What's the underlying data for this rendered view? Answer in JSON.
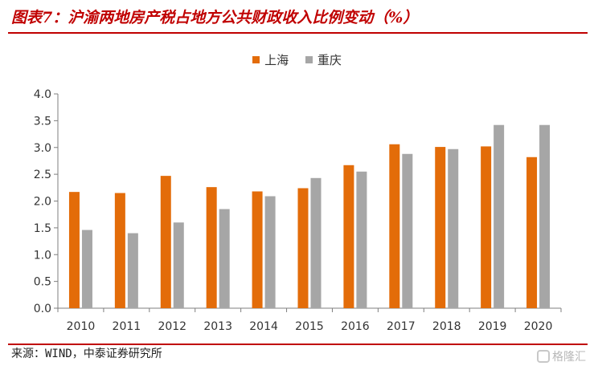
{
  "header": {
    "title": "图表7：沪渝两地房产税占地方公共财政收入比例变动（%）"
  },
  "footer": {
    "source": "来源：WIND，中泰证券研究所",
    "watermark": "格隆汇"
  },
  "colors": {
    "shanghai": "#e36c09",
    "chongqing": "#a6a6a6",
    "rule": "#c00000"
  },
  "chart_data": {
    "type": "bar",
    "title": "",
    "xlabel": "",
    "ylabel": "",
    "categories": [
      "2010",
      "2011",
      "2012",
      "2013",
      "2014",
      "2015",
      "2016",
      "2017",
      "2018",
      "2019",
      "2020"
    ],
    "series": [
      {
        "name": "上海",
        "color": "#e36c09",
        "values": [
          2.17,
          2.15,
          2.47,
          2.26,
          2.18,
          2.24,
          2.67,
          3.06,
          3.01,
          3.02,
          2.82
        ]
      },
      {
        "name": "重庆",
        "color": "#a6a6a6",
        "values": [
          1.46,
          1.4,
          1.6,
          1.85,
          2.09,
          2.43,
          2.55,
          2.88,
          2.97,
          3.42,
          3.42
        ]
      }
    ],
    "ylim": [
      0,
      4.0
    ],
    "yticks": [
      "0.0",
      "0.5",
      "1.0",
      "1.5",
      "2.0",
      "2.5",
      "3.0",
      "3.5",
      "4.0"
    ],
    "grid": false,
    "legend_position": "top-center"
  }
}
